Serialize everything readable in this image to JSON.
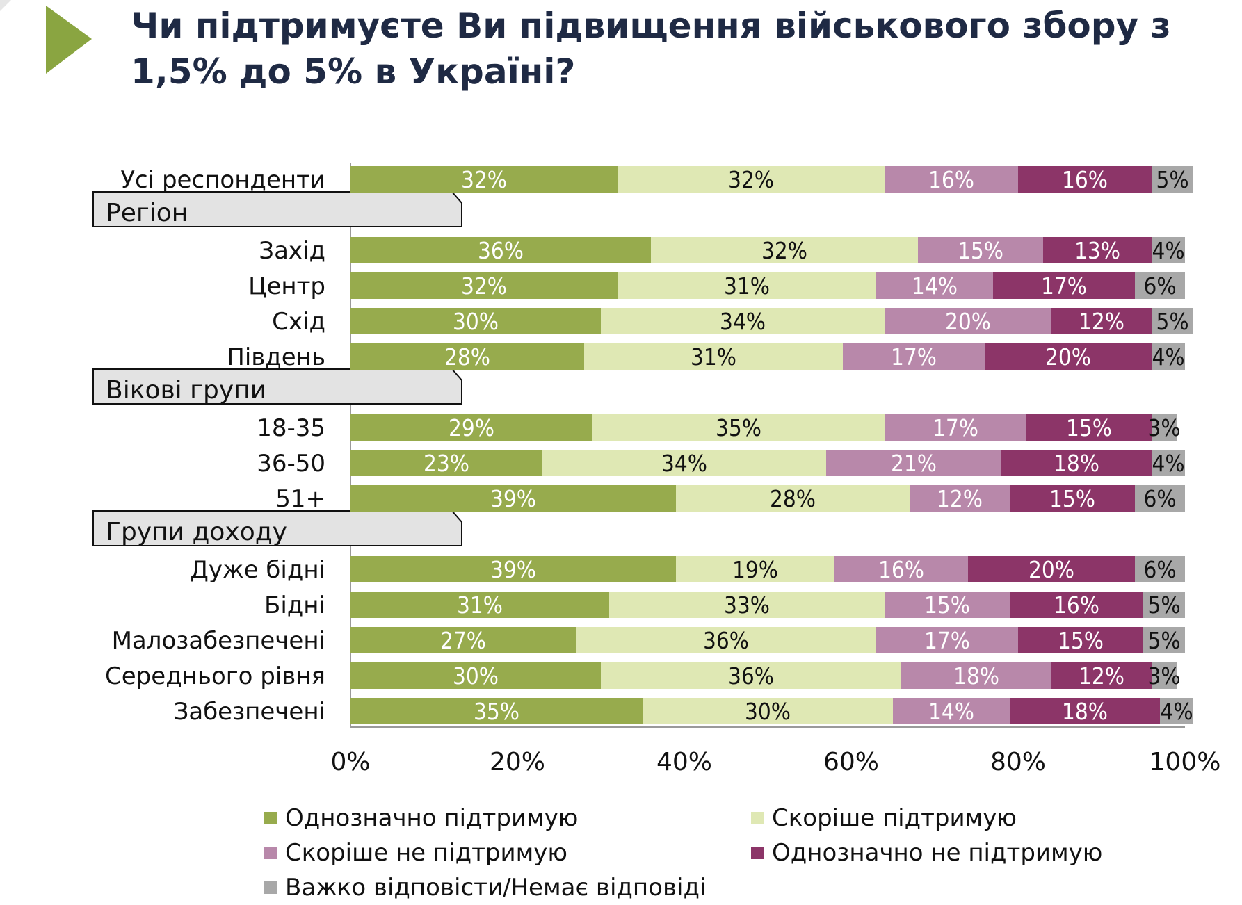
{
  "title": "Чи підтримуєте Ви підвищення військового збору з 1,5% до 5% в Україні?",
  "chart_data": {
    "type": "bar",
    "orientation": "horizontal",
    "stacked": true,
    "xlim": [
      0,
      100
    ],
    "x_ticks": [
      "0%",
      "20%",
      "40%",
      "60%",
      "80%",
      "100%"
    ],
    "legend_position": "bottom",
    "series": [
      {
        "name": "Однозначно підтримую",
        "color": "#97ab4d",
        "text_color": "#ffffff"
      },
      {
        "name": "Скоріше підтримую",
        "color": "#dfe8b4",
        "text_color": "#111111"
      },
      {
        "name": "Скоріше не підтримую",
        "color": "#b888aa",
        "text_color": "#ffffff"
      },
      {
        "name": "Однозначно не підтримую",
        "color": "#8c3568",
        "text_color": "#ffffff"
      },
      {
        "name": "Важко відповісти/Немає відповіді",
        "color": "#a8a8a8",
        "text_color": "#111111"
      }
    ],
    "groups": [
      {
        "label": "",
        "rows": [
          {
            "category": "Усі респонденти",
            "values": [
              32,
              32,
              16,
              16,
              5
            ]
          }
        ]
      },
      {
        "label": "Регіон",
        "rows": [
          {
            "category": "Захід",
            "values": [
              36,
              32,
              15,
              13,
              4
            ]
          },
          {
            "category": "Центр",
            "values": [
              32,
              31,
              14,
              17,
              6
            ]
          },
          {
            "category": "Схід",
            "values": [
              30,
              34,
              20,
              12,
              5
            ]
          },
          {
            "category": "Південь",
            "values": [
              28,
              31,
              17,
              20,
              4
            ]
          }
        ]
      },
      {
        "label": "Вікові групи",
        "rows": [
          {
            "category": "18-35",
            "values": [
              29,
              35,
              17,
              15,
              3
            ]
          },
          {
            "category": "36-50",
            "values": [
              23,
              34,
              21,
              18,
              4
            ]
          },
          {
            "category": "51+",
            "values": [
              39,
              28,
              12,
              15,
              6
            ]
          }
        ]
      },
      {
        "label": "Групи доходу",
        "rows": [
          {
            "category": "Дуже бідні",
            "values": [
              39,
              19,
              16,
              20,
              6
            ]
          },
          {
            "category": "Бідні",
            "values": [
              31,
              33,
              15,
              16,
              5
            ]
          },
          {
            "category": "Малозабезпечені",
            "values": [
              27,
              36,
              17,
              15,
              5
            ]
          },
          {
            "category": "Середнього рівня",
            "values": [
              30,
              36,
              18,
              12,
              3
            ]
          },
          {
            "category": "Забезпечені",
            "values": [
              35,
              30,
              14,
              18,
              4
            ]
          }
        ]
      }
    ]
  }
}
